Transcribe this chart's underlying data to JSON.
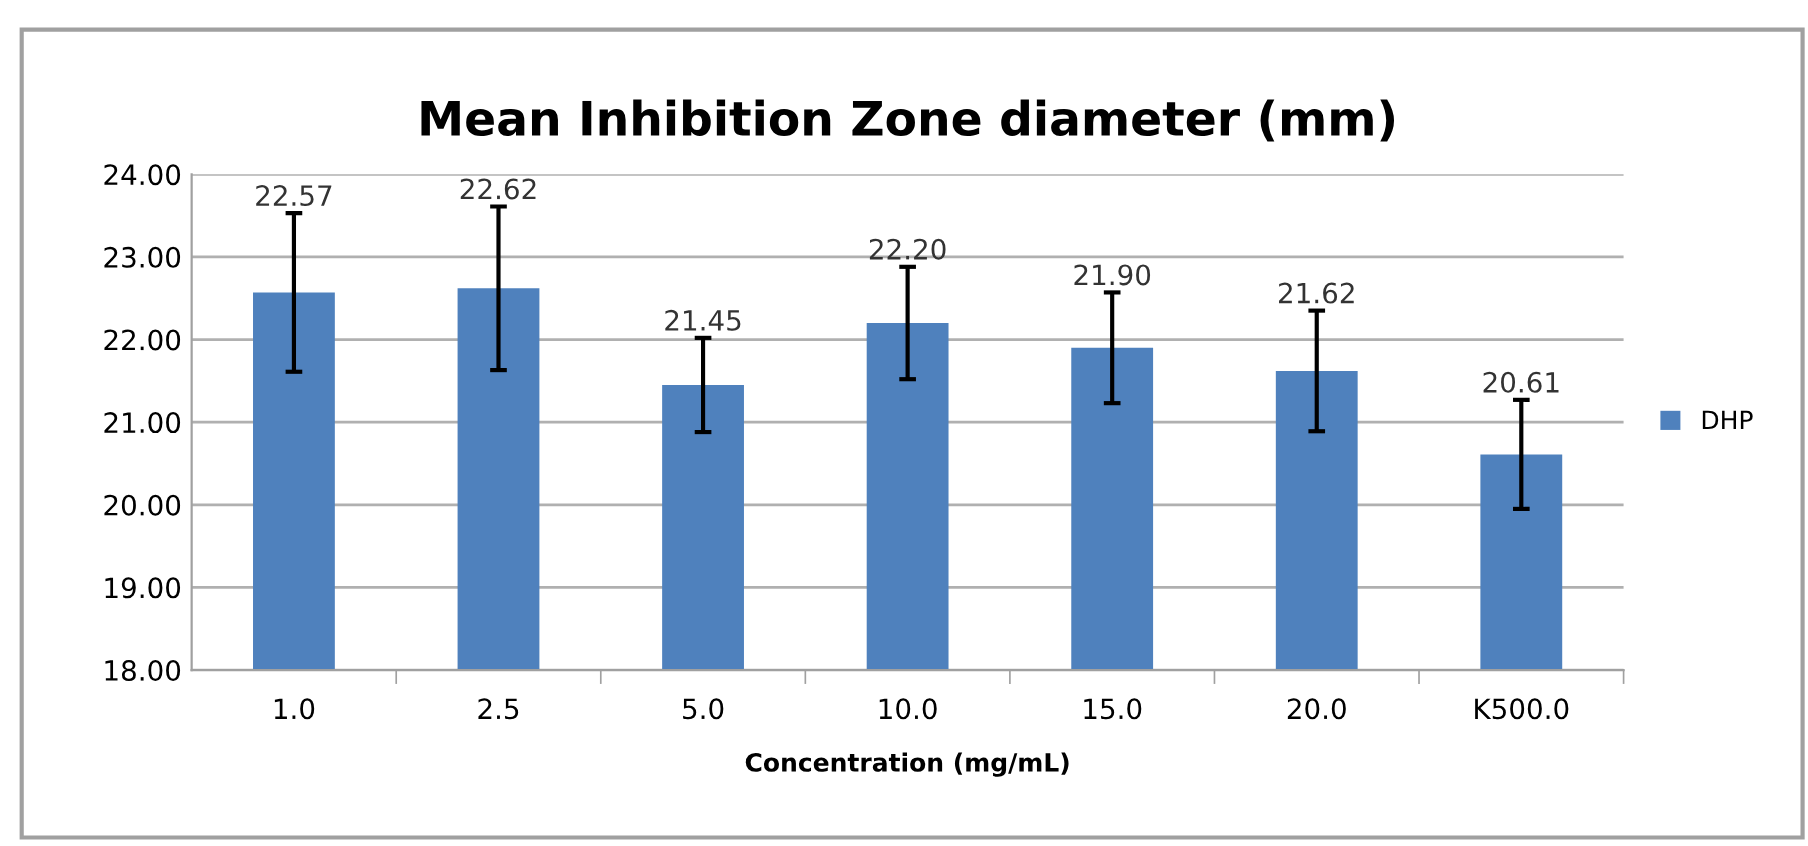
{
  "chart_data": {
    "type": "bar",
    "title": "Mean Inhibition Zone diameter (mm)",
    "xlabel": "Concentration (mg/mL)",
    "categories": [
      "1.0",
      "2.5",
      "5.0",
      "10.0",
      "15.0",
      "20.0",
      "K500.0"
    ],
    "series": [
      {
        "name": "DHP",
        "color": "#4f81bd",
        "values": [
          22.57,
          22.62,
          21.45,
          22.2,
          21.9,
          21.62,
          20.61
        ],
        "errors": [
          0.96,
          0.99,
          0.57,
          0.68,
          0.67,
          0.73,
          0.66
        ],
        "value_labels": [
          "22.57",
          "22.62",
          "21.45",
          "22.20",
          "21.90",
          "21.62",
          "20.61"
        ]
      }
    ],
    "ylim": [
      18,
      24
    ],
    "yticks": [
      {
        "value": 18,
        "label": "18.00"
      },
      {
        "value": 19,
        "label": "19.00"
      },
      {
        "value": 20,
        "label": "20.00"
      },
      {
        "value": 21,
        "label": "21.00"
      },
      {
        "value": 22,
        "label": "22.00"
      },
      {
        "value": 23,
        "label": "23.00"
      },
      {
        "value": 24,
        "label": "24.00"
      }
    ],
    "grid": "y",
    "legend": "right"
  }
}
